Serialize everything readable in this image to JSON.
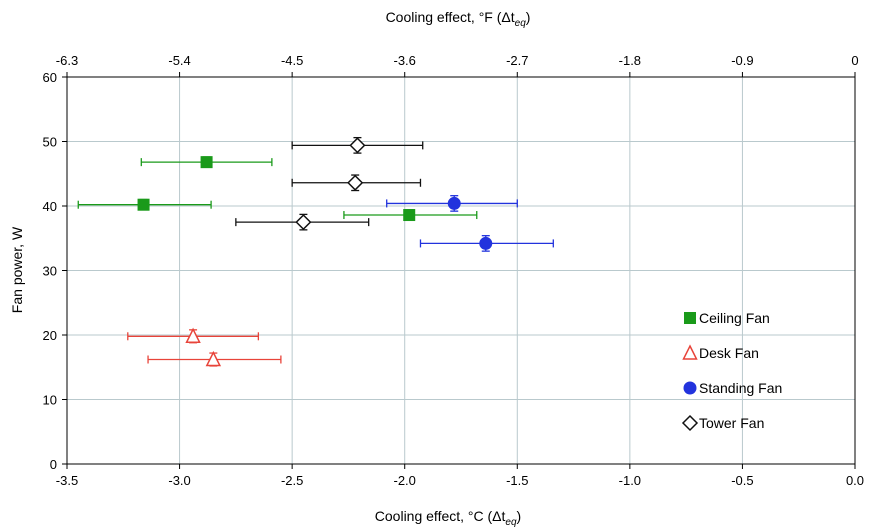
{
  "chart_data": {
    "type": "scatter",
    "xlabel": "Cooling effect, °C (Δt",
    "xlabel_sub": "eq",
    "xlabel_end": ")",
    "x2label": "Cooling effect, °F (Δt",
    "x2label_sub": "eq",
    "x2label_end": ")",
    "ylabel": "Fan power, W",
    "xlim": [
      -3.5,
      0.0
    ],
    "ylim": [
      0,
      60
    ],
    "x_ticks": [
      -3.5,
      -3.0,
      -2.5,
      -2.0,
      -1.5,
      -1.0,
      -0.5,
      0.0
    ],
    "x_tick_labels": [
      "-3.5",
      "-3.0",
      "-2.5",
      "-2.0",
      "-1.5",
      "-1.0",
      "-0.5",
      "0.0"
    ],
    "x2_ticks_c": [
      -3.5,
      -3.0,
      -2.5,
      -2.0,
      -1.5,
      -1.0,
      -0.5,
      0.0
    ],
    "x2_tick_labels": [
      "-6.3",
      "-5.4",
      "-4.5",
      "-3.6",
      "-2.7",
      "-1.8",
      "-0.9",
      "0"
    ],
    "y_ticks": [
      0,
      10,
      20,
      30,
      40,
      50,
      60
    ],
    "y_tick_labels": [
      "0",
      "10",
      "20",
      "30",
      "40",
      "50",
      "60"
    ],
    "grid": true,
    "legend_position": "bottom-right",
    "series": [
      {
        "name": "Ceiling Fan",
        "marker": "square",
        "color": "#1a9a1a",
        "points": [
          {
            "x": -2.88,
            "y": 46.8,
            "xerr_low": -3.17,
            "xerr_high": -2.59,
            "yerr": 0.8
          },
          {
            "x": -3.16,
            "y": 40.2,
            "xerr_low": -3.45,
            "xerr_high": -2.86,
            "yerr": 0.8
          },
          {
            "x": -1.98,
            "y": 38.6,
            "xerr_low": -2.27,
            "xerr_high": -1.68,
            "yerr": 0.8
          }
        ]
      },
      {
        "name": "Desk Fan",
        "marker": "triangle",
        "color": "#e8443a",
        "points": [
          {
            "x": -2.94,
            "y": 19.8,
            "xerr_low": -3.23,
            "xerr_high": -2.65,
            "yerr": 1.0
          },
          {
            "x": -2.85,
            "y": 16.2,
            "xerr_low": -3.14,
            "xerr_high": -2.55,
            "yerr": 1.0
          }
        ]
      },
      {
        "name": "Standing Fan",
        "marker": "circle",
        "color": "#2233dd",
        "points": [
          {
            "x": -1.78,
            "y": 40.4,
            "xerr_low": -2.08,
            "xerr_high": -1.5,
            "yerr": 1.2
          },
          {
            "x": -1.64,
            "y": 34.2,
            "xerr_low": -1.93,
            "xerr_high": -1.34,
            "yerr": 1.2
          }
        ]
      },
      {
        "name": "Tower Fan",
        "marker": "diamond",
        "color": "#111111",
        "points": [
          {
            "x": -2.21,
            "y": 49.4,
            "xerr_low": -2.5,
            "xerr_high": -1.92,
            "yerr": 1.2
          },
          {
            "x": -2.22,
            "y": 43.6,
            "xerr_low": -2.5,
            "xerr_high": -1.93,
            "yerr": 1.2
          },
          {
            "x": -2.45,
            "y": 37.5,
            "xerr_low": -2.75,
            "xerr_high": -2.16,
            "yerr": 1.2
          }
        ]
      }
    ]
  }
}
